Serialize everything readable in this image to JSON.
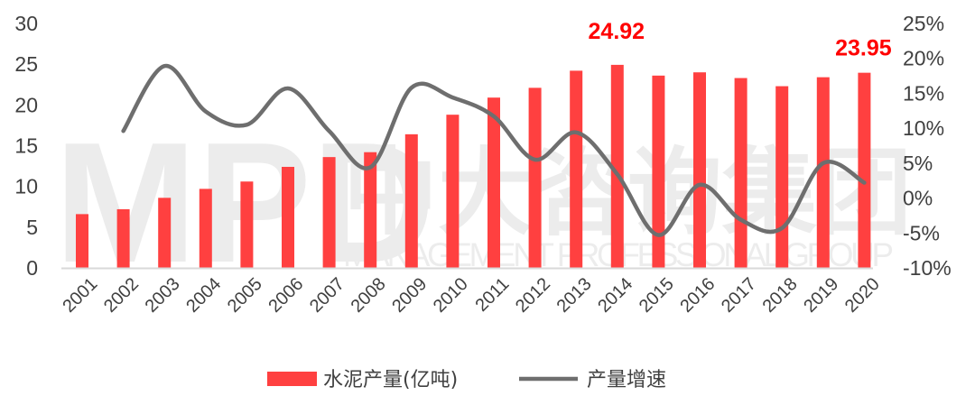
{
  "chart_data": {
    "type": "bar",
    "categories": [
      "2001",
      "2002",
      "2003",
      "2004",
      "2005",
      "2006",
      "2007",
      "2008",
      "2009",
      "2010",
      "2011",
      "2012",
      "2013",
      "2014",
      "2015",
      "2016",
      "2017",
      "2018",
      "2019",
      "2020"
    ],
    "series": [
      {
        "name": "水泥产量(亿吨)",
        "type": "bar",
        "axis": "left",
        "color": "#ff4040",
        "values": [
          6.6,
          7.2,
          8.6,
          9.7,
          10.6,
          12.4,
          13.6,
          14.2,
          16.4,
          18.8,
          20.9,
          22.1,
          24.2,
          24.92,
          23.6,
          24.0,
          23.3,
          22.3,
          23.4,
          23.95
        ]
      },
      {
        "name": "产量增速",
        "type": "line",
        "axis": "right",
        "color": "#6e6e6e",
        "values": [
          null,
          9.6,
          18.9,
          12.4,
          10.5,
          15.7,
          9.6,
          4.4,
          15.8,
          14.4,
          11.7,
          5.5,
          9.4,
          3.4,
          -5.3,
          1.9,
          -3.1,
          -4.3,
          5.0,
          2.2
        ]
      }
    ],
    "ylim_left": [
      0,
      30
    ],
    "yticks_left": [
      "0",
      "5",
      "10",
      "15",
      "20",
      "25",
      "30"
    ],
    "ylim_right": [
      -10,
      25
    ],
    "yticks_right": [
      "-10%",
      "-5%",
      "0%",
      "5%",
      "10%",
      "15%",
      "20%",
      "25%"
    ],
    "annotations": [
      {
        "category": "2014",
        "text": "24.92"
      },
      {
        "category": "2020",
        "text": "23.95"
      }
    ],
    "legend_placement": "bottom",
    "grid": false,
    "watermark": {
      "logo": "MPD",
      "cn": "中大咨询集团",
      "en": "MANAGEMENT PROFESSIONAL GROUP"
    }
  }
}
